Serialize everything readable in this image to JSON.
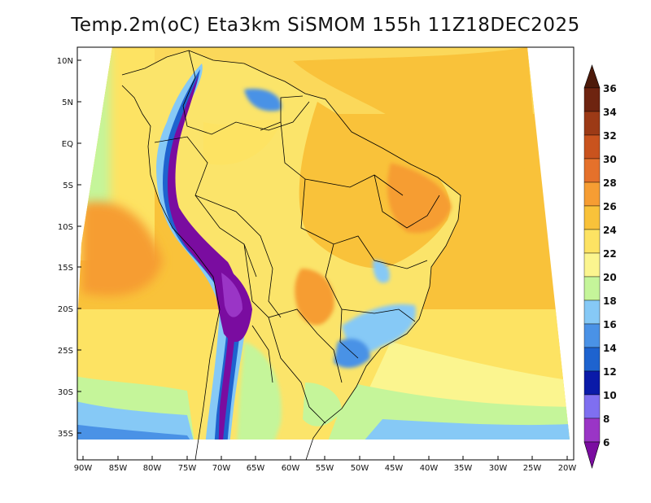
{
  "title": "Temp.2m(oC) Eta3km SiSMOM 155h 11Z18DEC2025",
  "map": {
    "variable": "2 m air temperature",
    "units": "oC",
    "region": "South America / Brazil",
    "lon_range": [
      -90,
      -20
    ],
    "lat_range": [
      -37,
      11
    ],
    "lat_ticks": [
      {
        "value": 10,
        "label": "10N"
      },
      {
        "value": 5,
        "label": "5N"
      },
      {
        "value": 0,
        "label": "EQ"
      },
      {
        "value": -5,
        "label": "5S"
      },
      {
        "value": -10,
        "label": "10S"
      },
      {
        "value": -15,
        "label": "15S"
      },
      {
        "value": -20,
        "label": "20S"
      },
      {
        "value": -25,
        "label": "25S"
      },
      {
        "value": -30,
        "label": "30S"
      },
      {
        "value": -35,
        "label": "35S"
      }
    ],
    "lon_ticks": [
      {
        "value": -90,
        "label": "90W"
      },
      {
        "value": -85,
        "label": "85W"
      },
      {
        "value": -80,
        "label": "80W"
      },
      {
        "value": -75,
        "label": "75W"
      },
      {
        "value": -70,
        "label": "70W"
      },
      {
        "value": -65,
        "label": "65W"
      },
      {
        "value": -60,
        "label": "60W"
      },
      {
        "value": -55,
        "label": "55W"
      },
      {
        "value": -50,
        "label": "50W"
      },
      {
        "value": -45,
        "label": "45W"
      },
      {
        "value": -40,
        "label": "40W"
      },
      {
        "value": -35,
        "label": "35W"
      },
      {
        "value": -30,
        "label": "30W"
      },
      {
        "value": -25,
        "label": "25W"
      },
      {
        "value": -20,
        "label": "20W"
      }
    ]
  },
  "colorbar": {
    "levels": [
      "6",
      "8",
      "10",
      "12",
      "14",
      "16",
      "18",
      "20",
      "22",
      "24",
      "26",
      "28",
      "30",
      "32",
      "34",
      "36"
    ],
    "colors": [
      "#7a0ca0",
      "#9a35c6",
      "#7f6ff0",
      "#0a1aa8",
      "#1e63cf",
      "#4a92e6",
      "#86c9f6",
      "#c5f59a",
      "#fbf58f",
      "#fde363",
      "#f9c23a",
      "#f69d33",
      "#e5712b",
      "#c9531e",
      "#9c3a16",
      "#6e2410",
      "#4d1a0a"
    ]
  },
  "colors": {
    "ocean_north": "#fbd85a",
    "ocean_mid": "#f9c23a",
    "ocean_south": "#c5f59a",
    "amazon": "#fbe46a",
    "hot": "#f69d33",
    "andes": "#7a0ca0",
    "highland": "#86c9f6",
    "border": "#000000"
  }
}
